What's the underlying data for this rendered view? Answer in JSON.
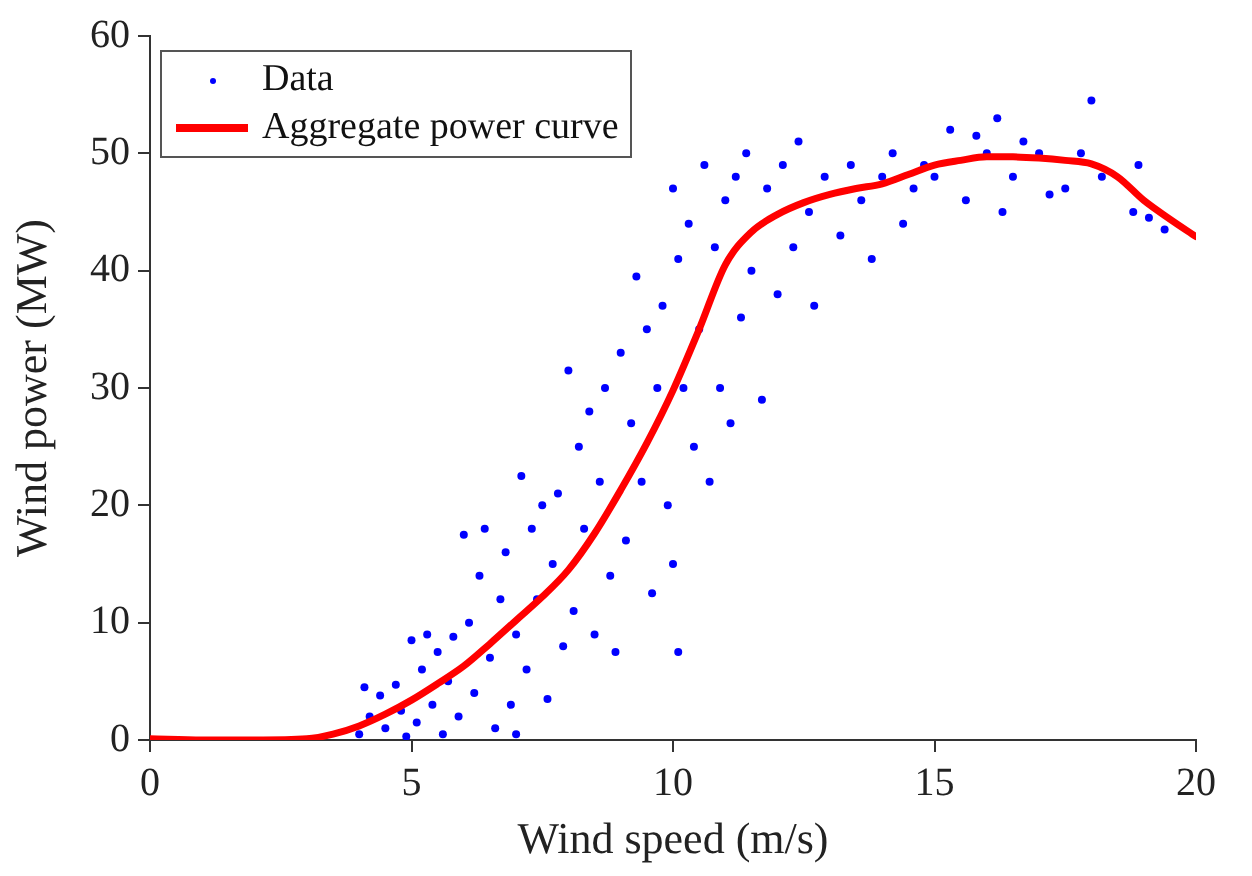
{
  "chart_data": {
    "type": "scatter",
    "xlabel": "Wind speed (m/s)",
    "ylabel": "Wind power (MW)",
    "xlim": [
      0,
      20
    ],
    "xticks": [
      0,
      5,
      10,
      15,
      20
    ],
    "ylim": [
      0,
      60
    ],
    "yticks": [
      0,
      10,
      20,
      30,
      40,
      50,
      60
    ],
    "grid": false,
    "legend": "top left",
    "series": [
      {
        "name": "Data",
        "type": "scatter",
        "color": "#0000ff",
        "marker": "circle",
        "x": [
          4.0,
          4.1,
          4.2,
          4.4,
          4.5,
          4.7,
          4.8,
          4.9,
          5.0,
          5.1,
          5.2,
          5.3,
          5.4,
          5.5,
          5.6,
          5.7,
          5.8,
          5.9,
          6.0,
          6.1,
          6.2,
          6.3,
          6.4,
          6.5,
          6.6,
          6.7,
          6.8,
          6.9,
          7.0,
          7.0,
          7.1,
          7.2,
          7.3,
          7.4,
          7.5,
          7.6,
          7.7,
          7.8,
          7.9,
          8.0,
          8.1,
          8.2,
          8.3,
          8.4,
          8.5,
          8.6,
          8.7,
          8.8,
          8.9,
          9.0,
          9.1,
          9.2,
          9.3,
          9.4,
          9.5,
          9.6,
          9.7,
          9.8,
          9.9,
          10.0,
          10.0,
          10.1,
          10.1,
          10.2,
          10.3,
          10.4,
          10.5,
          10.6,
          10.7,
          10.8,
          10.9,
          11.0,
          11.1,
          11.2,
          11.3,
          11.4,
          11.5,
          11.7,
          11.8,
          12.0,
          12.1,
          12.3,
          12.4,
          12.6,
          12.7,
          12.9,
          13.2,
          13.4,
          13.6,
          13.8,
          14.0,
          14.2,
          14.4,
          14.6,
          14.8,
          15.0,
          15.3,
          15.6,
          15.8,
          16.0,
          16.2,
          16.3,
          16.5,
          16.7,
          17.0,
          17.2,
          17.5,
          17.8,
          18.0,
          18.2,
          18.8,
          18.9,
          19.1,
          19.4
        ],
        "values": [
          0.5,
          4.5,
          2,
          3.8,
          1,
          4.7,
          2.5,
          0.3,
          8.5,
          1.5,
          6,
          9,
          3,
          7.5,
          0.5,
          5,
          8.8,
          2,
          17.5,
          10,
          4,
          14,
          18,
          7,
          1,
          12,
          16,
          3,
          0.5,
          9,
          22.5,
          6,
          18,
          12,
          20,
          3.5,
          15,
          21,
          8,
          31.5,
          11,
          25,
          18,
          28,
          9,
          22,
          30,
          14,
          7.5,
          33,
          17,
          27,
          39.5,
          22,
          35,
          12.5,
          30,
          37,
          20,
          47,
          15,
          41,
          7.5,
          30,
          44,
          25,
          35,
          49,
          22,
          42,
          30,
          46,
          27,
          48,
          36,
          50,
          40,
          29,
          47,
          38,
          49,
          42,
          51,
          45,
          37,
          48,
          43,
          49,
          46,
          41,
          48,
          50,
          44,
          47,
          49,
          48,
          52,
          46,
          51.5,
          50,
          53,
          45,
          48,
          51,
          50,
          46.5,
          47,
          50,
          54.5,
          48,
          45,
          49,
          44.5,
          43.5
        ]
      },
      {
        "name": "Aggregate power curve",
        "type": "line",
        "color": "#ff0000",
        "marker": "none",
        "line_style": "solid",
        "x": [
          0,
          1,
          2,
          3,
          3.5,
          4,
          4.5,
          5,
          5.5,
          6,
          6.5,
          7,
          7.5,
          8,
          8.5,
          9,
          9.5,
          10,
          10.5,
          11,
          11.5,
          12,
          12.5,
          13,
          13.5,
          14,
          14.5,
          15,
          15.5,
          16,
          16.5,
          17,
          17.5,
          18,
          18.5,
          19,
          19.5,
          20
        ],
        "values": [
          0.1,
          0,
          0,
          0.1,
          0.5,
          1.2,
          2.2,
          3.4,
          4.8,
          6.3,
          8.2,
          10.2,
          12.2,
          14.5,
          17.6,
          21.3,
          25.3,
          29.8,
          35,
          40.5,
          43.3,
          44.8,
          45.8,
          46.5,
          47,
          47.4,
          48.2,
          49,
          49.4,
          49.7,
          49.7,
          49.6,
          49.4,
          49.1,
          48,
          46,
          44.4,
          42.9
        ]
      }
    ]
  }
}
